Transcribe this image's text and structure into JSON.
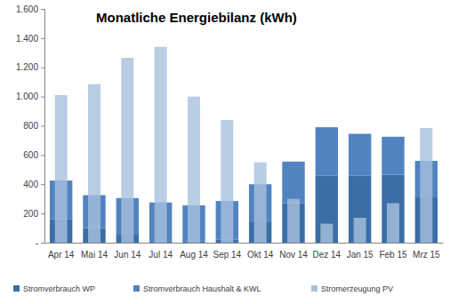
{
  "chart_data": {
    "type": "bar",
    "title": "Monatliche Energiebilanz (kWh)",
    "categories": [
      "Apr 14",
      "Mai 14",
      "Jun 14",
      "Jul 14",
      "Aug 14",
      "Sep 14",
      "Okt 14",
      "Nov 14",
      "Dez 14",
      "Jan 15",
      "Feb 15",
      "Mrz 15"
    ],
    "series": [
      {
        "name": "Stromverbrauch WP",
        "color": "#3b6ea6",
        "type": "stacked_bar",
        "values": [
          160,
          100,
          60,
          10,
          10,
          20,
          140,
          270,
          460,
          460,
          465,
          310
        ]
      },
      {
        "name": "Stromverbrauch Haushalt & KWL",
        "color": "#5183c0",
        "type": "stacked_bar",
        "values": [
          265,
          225,
          245,
          265,
          245,
          265,
          260,
          285,
          330,
          285,
          260,
          250
        ]
      },
      {
        "name": "Stromerzeugung PV",
        "color": "#a8c0de",
        "type": "bar",
        "values": [
          1010,
          1085,
          1265,
          1340,
          1000,
          840,
          550,
          300,
          130,
          170,
          270,
          785
        ]
      }
    ],
    "ylim": [
      0,
      1600
    ],
    "yticks": [
      {
        "value": 0,
        "label": "-"
      },
      200,
      400,
      600,
      800,
      {
        "value": 1000,
        "label": "1.000"
      },
      {
        "value": 1200,
        "label": "1.200"
      },
      {
        "value": 1400,
        "label": "1.400"
      },
      {
        "value": 1600,
        "label": "1.600"
      }
    ],
    "stacked": true,
    "grid": false,
    "legend": "bottom"
  }
}
